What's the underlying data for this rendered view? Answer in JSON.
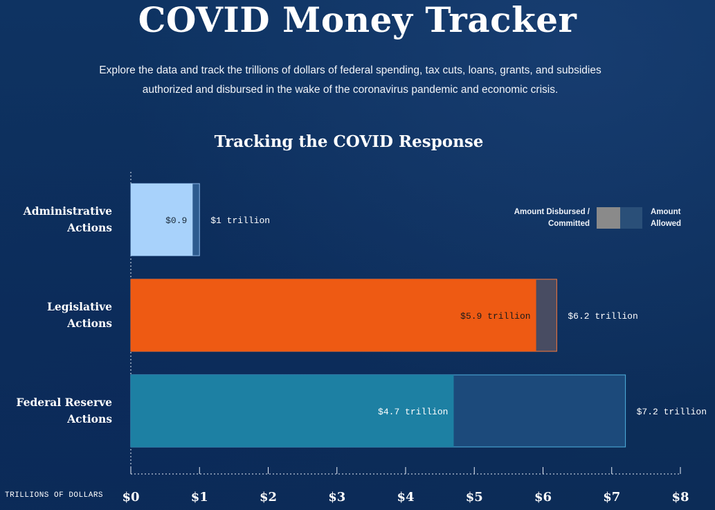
{
  "header": {
    "title": "COVID Money Tracker",
    "subtitle": "Explore the data and track the trillions of dollars of federal spending, tax cuts, loans, grants, and subsidies authorized and disbursed in the wake of the coronavirus pandemic and economic crisis."
  },
  "chart_data": {
    "type": "bar",
    "orientation": "horizontal",
    "stacked_overlay": true,
    "title": "Tracking the COVID Response",
    "xlabel": "TRILLIONS OF DOLLARS",
    "xlim": [
      0,
      8
    ],
    "x_ticks": [
      0,
      1,
      2,
      3,
      4,
      5,
      6,
      7,
      8
    ],
    "x_tick_labels": [
      "$0",
      "$1",
      "$2",
      "$3",
      "$4",
      "$5",
      "$6",
      "$7",
      "$8"
    ],
    "categories": [
      "Administrative Actions",
      "Legislative Actions",
      "Federal Reserve Actions"
    ],
    "category_lines": [
      [
        "Administrative",
        "Actions"
      ],
      [
        "Legislative",
        "Actions"
      ],
      [
        "Federal Reserve",
        "Actions"
      ]
    ],
    "series": [
      {
        "name": "Amount Disbursed / Committed",
        "values": [
          0.9,
          5.9,
          4.7
        ],
        "labels": [
          "$0.9",
          "$5.9 trillion",
          "$4.7 trillion"
        ]
      },
      {
        "name": "Amount Allowed",
        "values": [
          1.0,
          6.2,
          7.2
        ],
        "labels": [
          "$1 trillion",
          "$6.2 trillion",
          "$7.2 trillion"
        ]
      }
    ],
    "bar_colors": [
      "#a8d2fb",
      "#ee5a13",
      "#1d80a3"
    ],
    "allowed_colors": [
      "#2d5b8f",
      "#484c62",
      "#1c4a7b"
    ],
    "allowed_borders": [
      "#8ab6e8",
      "#ff7a3a",
      "#4fb3e0"
    ],
    "disbursed_label_colors": [
      "#1b2a3a",
      "#1a1a1a",
      "#ffffff"
    ],
    "legend": {
      "position": "top-right",
      "left_label": "Amount Disbursed / Committed",
      "left_lines": [
        "Amount Disbursed /",
        "Committed"
      ],
      "right_label": "Amount Allowed",
      "right_lines": [
        "Amount",
        "Allowed"
      ],
      "left_color": "#8a8a8a",
      "right_color": "#2a4f78"
    },
    "grid": false
  }
}
